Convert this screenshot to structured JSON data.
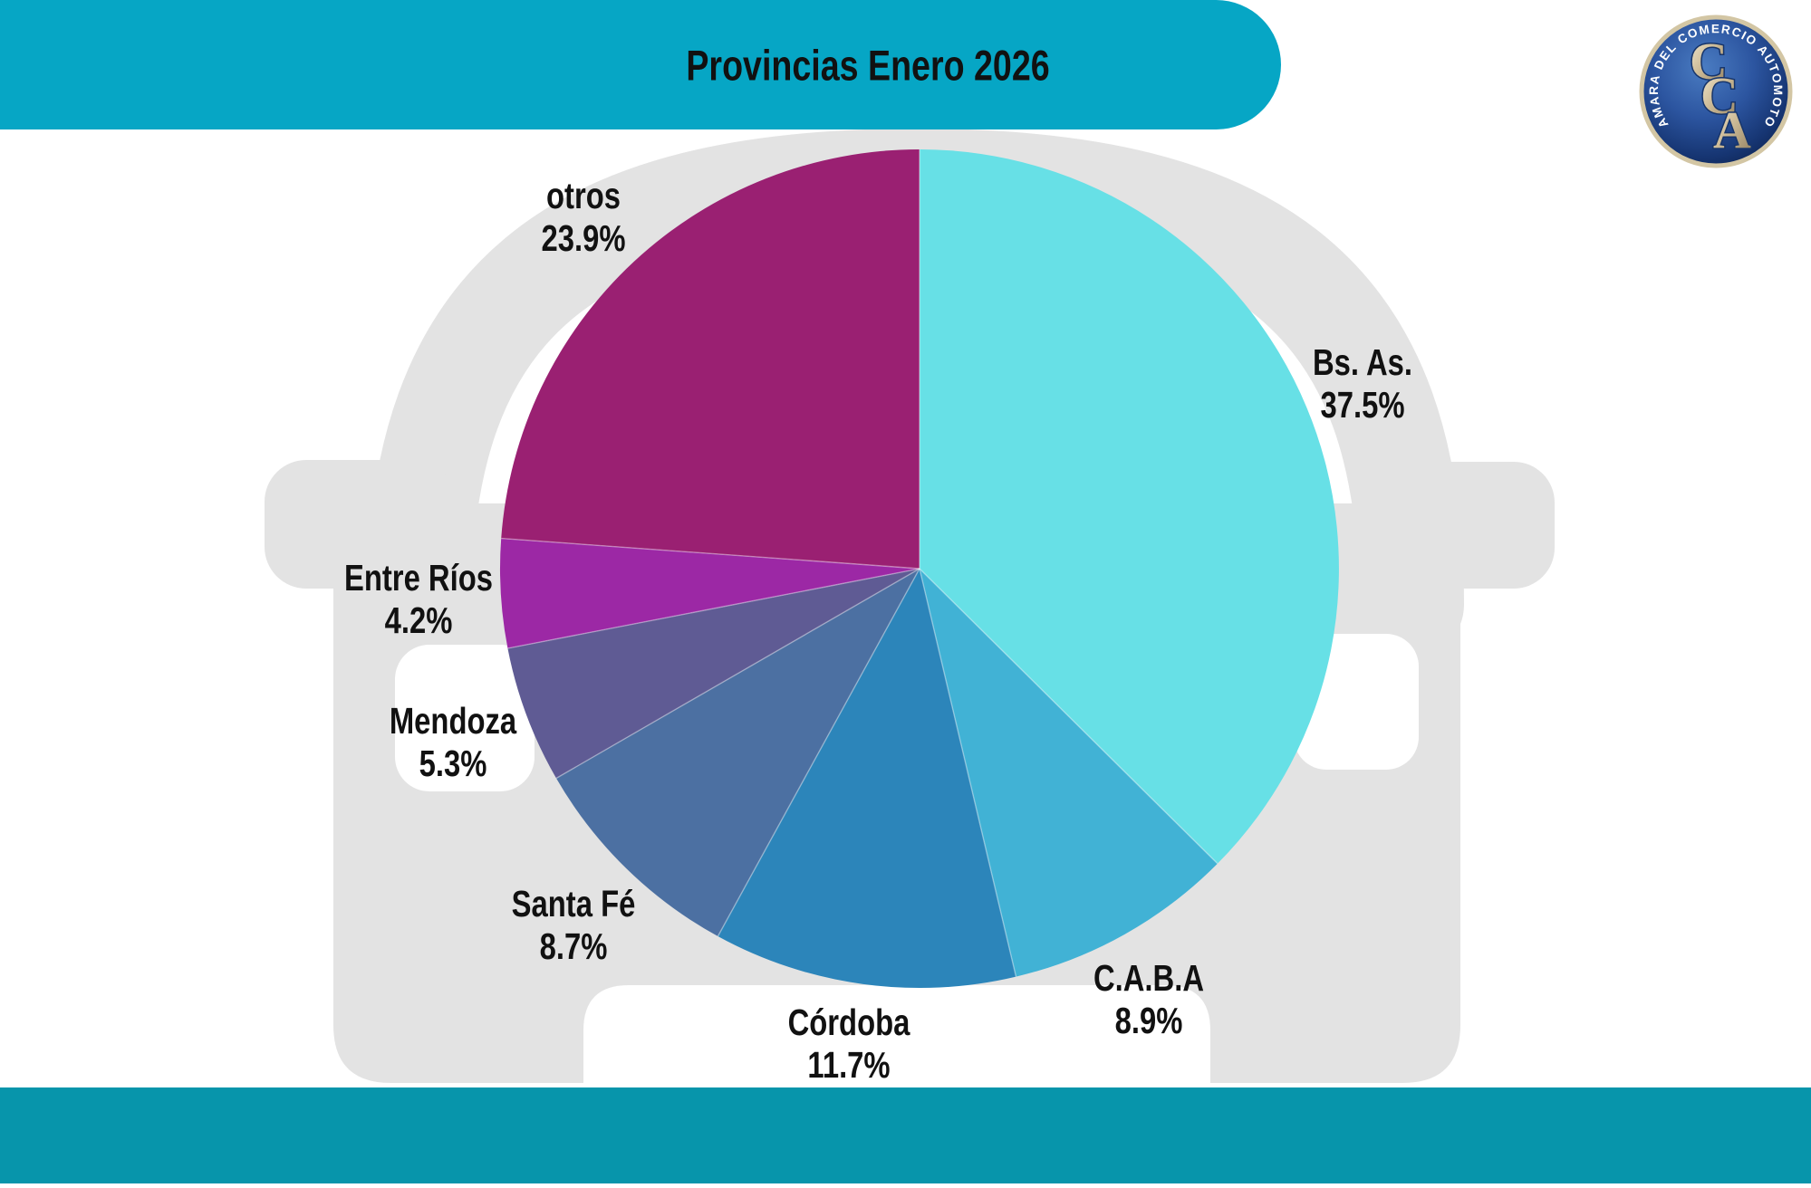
{
  "header": {
    "title": "Provincias Enero 2026"
  },
  "logo": {
    "ring_text": "CAMARA DEL COMERCIO AUTOMOTOR",
    "letters": [
      "C",
      "C",
      "A"
    ]
  },
  "colors": {
    "header_band": "#06A6C5",
    "footer_band": "#0795AB",
    "silhouette_gray": "#E3E3E3",
    "label_text": "#111111"
  },
  "chart_data": {
    "type": "pie",
    "title": "Provincias Enero 2026",
    "start_angle_deg": 0,
    "direction": "clockwise",
    "legend_position": "outside-labels",
    "slices": [
      {
        "label": "Bs. As.",
        "value": 37.5,
        "pct_label": "37.5%",
        "color": "#67E0E6"
      },
      {
        "label": "C.A.B.A",
        "value": 8.9,
        "pct_label": "8.9%",
        "color": "#41B2D5"
      },
      {
        "label": "Córdoba",
        "value": 11.7,
        "pct_label": "11.7%",
        "color": "#2C85BA"
      },
      {
        "label": "Santa Fé",
        "value": 8.7,
        "pct_label": "8.7%",
        "color": "#4C70A2"
      },
      {
        "label": "Mendoza",
        "value": 5.3,
        "pct_label": "5.3%",
        "color": "#5F5B94"
      },
      {
        "label": "Entre Ríos",
        "value": 4.2,
        "pct_label": "4.2%",
        "color": "#9C28A5"
      },
      {
        "label": "otros",
        "value": 23.9,
        "pct_label": "23.9%",
        "color": "#9A2072"
      }
    ]
  }
}
